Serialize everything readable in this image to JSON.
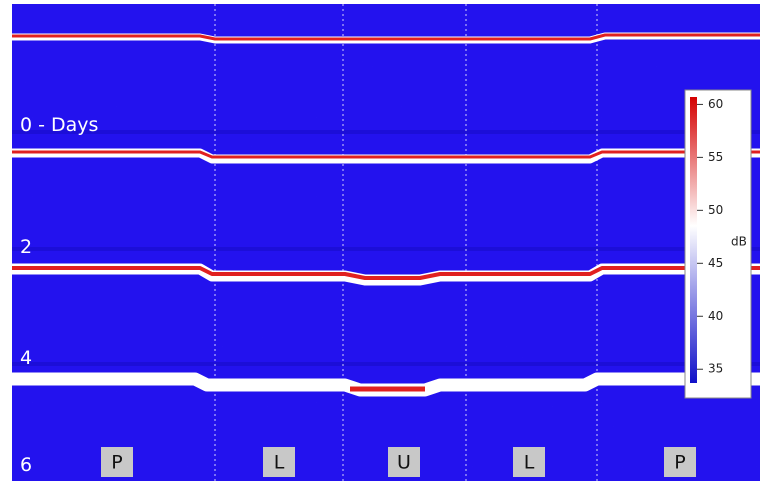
{
  "rows": [
    "0 - Days",
    "2",
    "4",
    "6"
  ],
  "regions": [
    "P",
    "L",
    "U",
    "L",
    "P"
  ],
  "colorbar": {
    "unit": "dB",
    "lim": [
      33.7,
      60.7
    ],
    "ticks": [
      35,
      40,
      45,
      50,
      55,
      60
    ]
  }
}
